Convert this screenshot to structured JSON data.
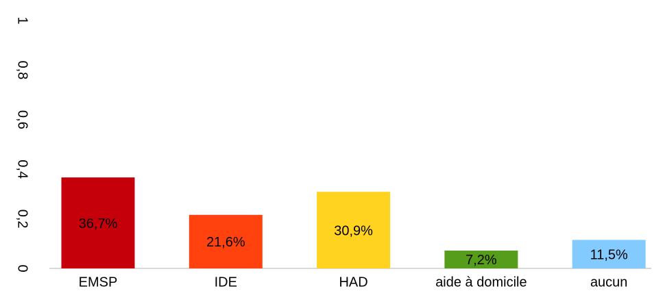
{
  "chart_data": {
    "type": "bar",
    "categories": [
      "EMSP",
      "IDE",
      "HAD",
      "aide à domicile",
      "aucun"
    ],
    "values": [
      0.367,
      0.216,
      0.309,
      0.072,
      0.115
    ],
    "value_labels": [
      "36,7%",
      "21,6%",
      "30,9%",
      "7,2%",
      "11,5%"
    ],
    "colors": [
      "#c5000b",
      "#ff420e",
      "#ffd320",
      "#579d1c",
      "#83caff"
    ],
    "ylim": [
      0,
      1
    ],
    "yticks": [
      0,
      {
        "value": 0.2,
        "label": "0,2"
      },
      {
        "value": 0.4,
        "label": "0,4"
      },
      {
        "value": 0.6,
        "label": "0,6"
      },
      {
        "value": 0.8,
        "label": "0,8"
      },
      1
    ],
    "grid": false
  }
}
